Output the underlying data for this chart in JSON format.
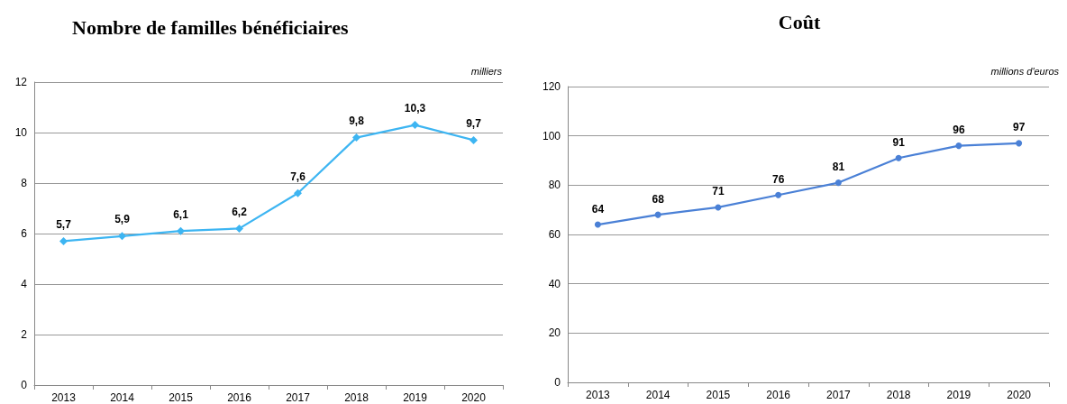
{
  "chart_data": [
    {
      "type": "line",
      "title": "Nombre de familles bénéficiaires",
      "ylabel": "milliers",
      "categories": [
        "2013",
        "2014",
        "2015",
        "2016",
        "2017",
        "2018",
        "2019",
        "2020"
      ],
      "series": [
        {
          "color": "#3db5f2",
          "values": [
            5.7,
            5.9,
            6.1,
            6.2,
            7.6,
            9.8,
            10.3,
            9.7
          ]
        }
      ],
      "ylim": [
        0,
        12
      ],
      "yticks": [
        0,
        2,
        4,
        6,
        8,
        10,
        12
      ],
      "grid": "y",
      "marker": "diamond",
      "value_labels": [
        "5,7",
        "5,9",
        "6,1",
        "6,2",
        "7,6",
        "9,8",
        "10,3",
        "9,7"
      ]
    },
    {
      "type": "line",
      "title": "Coût",
      "ylabel": "millions d'euros",
      "categories": [
        "2013",
        "2014",
        "2015",
        "2016",
        "2017",
        "2018",
        "2019",
        "2020"
      ],
      "series": [
        {
          "color": "#4a80d6",
          "values": [
            64,
            68,
            71,
            76,
            81,
            91,
            96,
            97
          ]
        }
      ],
      "ylim": [
        0,
        120
      ],
      "yticks": [
        0,
        20,
        40,
        60,
        80,
        100,
        120
      ],
      "grid": "y",
      "marker": "circle",
      "data_labels": true
    }
  ]
}
